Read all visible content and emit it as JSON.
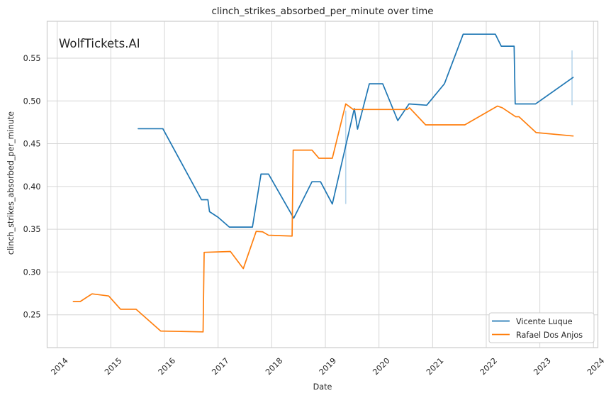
{
  "watermark": {
    "text": "WolfTickets.AI",
    "color": "#c9c9c9"
  },
  "chart_data": {
    "type": "line",
    "title": "clinch_strikes_absorbed_per_minute over time",
    "xlabel": "Date",
    "ylabel": "clinch_strikes_absorbed_per_minute",
    "grid": true,
    "legend_position": "lower right",
    "xlim": [
      2013.812,
      2024.082
    ],
    "ylim": [
      0.2116,
      0.5931
    ],
    "x_ticks": [
      2014,
      2015,
      2016,
      2017,
      2018,
      2019,
      2020,
      2021,
      2022,
      2023,
      2024
    ],
    "y_ticks": [
      "0.25",
      "0.30",
      "0.35",
      "0.40",
      "0.45",
      "0.50",
      "0.55"
    ],
    "colors": {
      "vicente_luque": "#1f77b4",
      "rafael_dos_anjos": "#ff7f0e",
      "grid": "#d6d6d6",
      "spine": "#cccccc",
      "error_bar": "#a9cde8"
    },
    "series": [
      {
        "name": "Vicente Luque",
        "color": "#1f77b4",
        "points": [
          [
            2015.51,
            0.4675
          ],
          [
            2015.97,
            0.4675
          ],
          [
            2016.69,
            0.3845
          ],
          [
            2016.81,
            0.3845
          ],
          [
            2016.84,
            0.3705
          ],
          [
            2017.0,
            0.364
          ],
          [
            2017.21,
            0.3525
          ],
          [
            2017.64,
            0.3525
          ],
          [
            2017.8,
            0.4145
          ],
          [
            2017.94,
            0.4145
          ],
          [
            2018.41,
            0.363
          ],
          [
            2018.75,
            0.4055
          ],
          [
            2018.91,
            0.4055
          ],
          [
            2019.13,
            0.3795
          ],
          [
            2019.54,
            0.491
          ],
          [
            2019.6,
            0.467
          ],
          [
            2019.82,
            0.52
          ],
          [
            2020.07,
            0.52
          ],
          [
            2020.35,
            0.477
          ],
          [
            2020.56,
            0.4965
          ],
          [
            2020.89,
            0.495
          ],
          [
            2021.22,
            0.52
          ],
          [
            2021.57,
            0.578
          ],
          [
            2022.17,
            0.578
          ],
          [
            2022.28,
            0.564
          ],
          [
            2022.52,
            0.564
          ],
          [
            2022.54,
            0.4965
          ],
          [
            2022.92,
            0.4965
          ],
          [
            2023.62,
            0.5275
          ]
        ]
      },
      {
        "name": "Rafael Dos Anjos",
        "color": "#ff7f0e",
        "points": [
          [
            2014.3,
            0.2655
          ],
          [
            2014.43,
            0.2655
          ],
          [
            2014.65,
            0.2745
          ],
          [
            2014.96,
            0.272
          ],
          [
            2015.18,
            0.2565
          ],
          [
            2015.47,
            0.2565
          ],
          [
            2015.93,
            0.231
          ],
          [
            2016.72,
            0.23
          ],
          [
            2016.74,
            0.323
          ],
          [
            2017.23,
            0.324
          ],
          [
            2017.47,
            0.304
          ],
          [
            2017.71,
            0.3475
          ],
          [
            2017.83,
            0.347
          ],
          [
            2017.94,
            0.343
          ],
          [
            2018.38,
            0.342
          ],
          [
            2018.4,
            0.4425
          ],
          [
            2018.75,
            0.4425
          ],
          [
            2018.88,
            0.433
          ],
          [
            2019.13,
            0.433
          ],
          [
            2019.38,
            0.4965
          ],
          [
            2019.52,
            0.49
          ],
          [
            2020.53,
            0.49
          ],
          [
            2020.57,
            0.492
          ],
          [
            2020.87,
            0.472
          ],
          [
            2021.6,
            0.472
          ],
          [
            2022.21,
            0.494
          ],
          [
            2022.3,
            0.492
          ],
          [
            2022.55,
            0.4815
          ],
          [
            2022.61,
            0.4815
          ],
          [
            2022.93,
            0.463
          ],
          [
            2023.62,
            0.459
          ]
        ]
      }
    ],
    "error_bars": [
      {
        "x": 2019.38,
        "from": 0.3795,
        "to": 0.4885
      },
      {
        "x": 2023.6,
        "from": 0.495,
        "to": 0.559
      }
    ]
  }
}
